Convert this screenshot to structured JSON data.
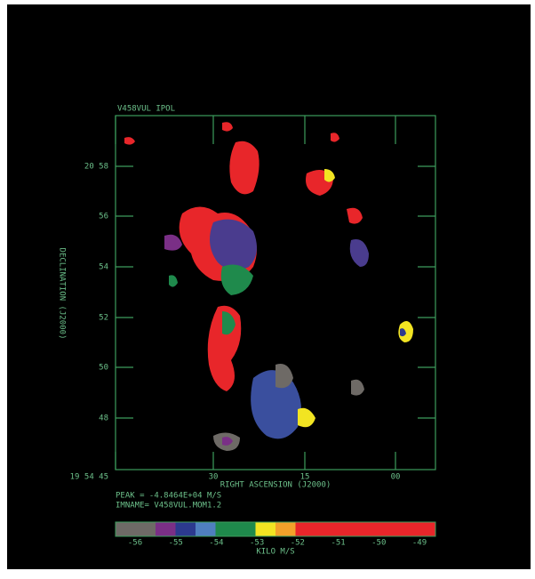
{
  "plot": {
    "title": "V458VUL IPOL",
    "y_label": "DECLINATION (J2000)",
    "x_label": "RIGHT ASCENSION (J2000)",
    "y_ticks": [
      "20 58",
      "56",
      "54",
      "52",
      "50",
      "48"
    ],
    "x_ticks": [
      "19 54 45",
      "30",
      "15",
      "00"
    ],
    "peak": "PEAK = -4.8464E+04 M/S",
    "imname": "IMNAME= V458VUL.MOM1.2"
  },
  "colorbar": {
    "tick_labels": [
      "-56",
      "-55",
      "-54",
      "-53",
      "-52",
      "-51",
      "-50",
      "-49"
    ],
    "label": "KILO M/S",
    "colors": [
      "#6e6a66",
      "#6e6a66",
      "#7a2f86",
      "#2c3a8e",
      "#4f7fbf",
      "#1f8a4c",
      "#1f8a4c",
      "#f2e422",
      "#f2a12a",
      "#e8262a",
      "#e8262a",
      "#e8262a",
      "#e8262a",
      "#e8262a",
      "#e8262a",
      "#e8262a"
    ]
  }
}
